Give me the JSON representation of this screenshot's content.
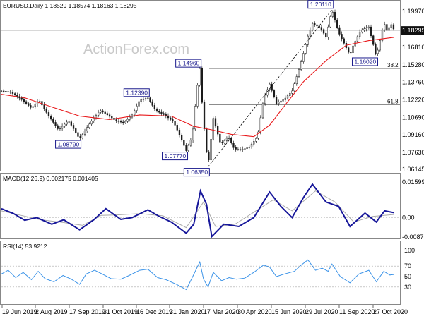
{
  "header": {
    "main": "EURUSD,Daily  1.18529 1.18574 1.18163 1.18295",
    "macd": "MACD(12,26,9) 0.002175 0.001405",
    "rsi": "RSI(14) 53.9212"
  },
  "watermark": "ActionForex.com",
  "colors": {
    "candle": "#1a1a1a",
    "sma": "#e8191b",
    "macd": "#17179a",
    "signal": "#aaaaaa",
    "rsi": "#3b93e8",
    "label_border": "#1a1a8c",
    "level_lines": "#666666",
    "current_price_box": "#111111"
  },
  "chart_data": [
    {
      "type": "candlestick",
      "ylim": [
        1.06145,
        1.1997
      ],
      "yticks": [
        "1.19970",
        "1.18295",
        "1.16810",
        "1.15280",
        "1.13760",
        "1.12220",
        "1.10690",
        "1.09160",
        "1.07630",
        "1.06145"
      ],
      "current_price": "1.18295",
      "xticks": [
        "19 Jun 2019",
        "2 Aug 2019",
        "17 Sep 2019",
        "31 Oct 2019",
        "16 Dec 2019",
        "31 Jan 2020",
        "17 Mar 2020",
        "30 Apr 2020",
        "15 Jun 2020",
        "29 Jul 2020",
        "11 Sep 2020",
        "27 Oct 2020"
      ],
      "price_path": [
        [
          "2019-06-19",
          1.13
        ],
        [
          "2019-07-01",
          1.129
        ],
        [
          "2019-07-15",
          1.123
        ],
        [
          "2019-07-29",
          1.115
        ],
        [
          "2019-08-08",
          1.122
        ],
        [
          "2019-08-20",
          1.109
        ],
        [
          "2019-09-03",
          1.096
        ],
        [
          "2019-09-16",
          1.104
        ],
        [
          "2019-09-23",
          1.097
        ],
        [
          "2019-10-01",
          1.0879
        ],
        [
          "2019-10-15",
          1.102
        ],
        [
          "2019-10-28",
          1.113
        ],
        [
          "2019-11-05",
          1.11
        ],
        [
          "2019-11-18",
          1.104
        ],
        [
          "2019-11-29",
          1.102
        ],
        [
          "2019-12-10",
          1.109
        ],
        [
          "2019-12-20",
          1.122
        ],
        [
          "2019-12-31",
          1.1239
        ],
        [
          "2020-01-10",
          1.113
        ],
        [
          "2020-01-22",
          1.109
        ],
        [
          "2020-02-03",
          1.103
        ],
        [
          "2020-02-12",
          1.09
        ],
        [
          "2020-02-20",
          1.0777
        ],
        [
          "2020-02-28",
          1.09
        ],
        [
          "2020-03-05",
          1.13
        ],
        [
          "2020-03-09",
          1.1496
        ],
        [
          "2020-03-13",
          1.11
        ],
        [
          "2020-03-20",
          1.0635
        ],
        [
          "2020-03-27",
          1.106
        ],
        [
          "2020-04-06",
          1.083
        ],
        [
          "2020-04-16",
          1.09
        ],
        [
          "2020-04-24",
          1.079
        ],
        [
          "2020-05-06",
          1.079
        ],
        [
          "2020-05-14",
          1.081
        ],
        [
          "2020-05-25",
          1.09
        ],
        [
          "2020-06-02",
          1.123
        ],
        [
          "2020-06-10",
          1.136
        ],
        [
          "2020-06-19",
          1.119
        ],
        [
          "2020-06-30",
          1.123
        ],
        [
          "2020-07-10",
          1.13
        ],
        [
          "2020-07-21",
          1.153
        ],
        [
          "2020-07-31",
          1.178
        ],
        [
          "2020-08-06",
          1.189
        ],
        [
          "2020-08-17",
          1.185
        ],
        [
          "2020-08-24",
          1.177
        ],
        [
          "2020-09-01",
          1.2011
        ],
        [
          "2020-09-10",
          1.181
        ],
        [
          "2020-09-25",
          1.1612
        ],
        [
          "2020-09-28",
          1.168
        ],
        [
          "2020-10-09",
          1.183
        ],
        [
          "2020-10-20",
          1.186
        ],
        [
          "2020-10-30",
          1.1602
        ],
        [
          "2020-11-04",
          1.174
        ],
        [
          "2020-11-09",
          1.19
        ],
        [
          "2020-11-13",
          1.183
        ],
        [
          "2020-11-19",
          1.188
        ],
        [
          "2020-11-23",
          1.183
        ]
      ],
      "labels": [
        {
          "text": "1.08790",
          "date": "2019-10-01",
          "price": 1.0879,
          "side": "below"
        },
        {
          "text": "1.12390",
          "date": "2019-12-31",
          "price": 1.1239,
          "side": "above"
        },
        {
          "text": "1.07770",
          "date": "2020-02-20",
          "price": 1.0777,
          "side": "below"
        },
        {
          "text": "1.14960",
          "date": "2020-03-09",
          "price": 1.1496,
          "side": "above"
        },
        {
          "text": "1.06350",
          "date": "2020-03-20",
          "price": 1.0635,
          "side": "below"
        },
        {
          "text": "1.20110",
          "date": "2020-09-01",
          "price": 1.2011,
          "side": "above"
        },
        {
          "text": "1.16020",
          "date": "2020-10-30",
          "price": 1.1602,
          "side": "below"
        }
      ],
      "fib_levels": [
        {
          "text": "38.2",
          "price": 1.1496
        },
        {
          "text": "61.8",
          "price": 1.118
        }
      ],
      "trend_line": {
        "from": [
          "2020-03-20",
          1.0635
        ],
        "to": [
          "2020-09-01",
          1.2011
        ]
      },
      "sma_path": [
        [
          "2019-06-19",
          1.127
        ],
        [
          "2019-07-20",
          1.124
        ],
        [
          "2019-08-25",
          1.116
        ],
        [
          "2019-10-01",
          1.108
        ],
        [
          "2019-11-10",
          1.105
        ],
        [
          "2019-12-20",
          1.109
        ],
        [
          "2020-01-31",
          1.108
        ],
        [
          "2020-03-01",
          1.099
        ],
        [
          "2020-03-25",
          1.096
        ],
        [
          "2020-04-20",
          1.092
        ],
        [
          "2020-05-20",
          1.09
        ],
        [
          "2020-06-10",
          1.1
        ],
        [
          "2020-07-01",
          1.118
        ],
        [
          "2020-07-25",
          1.138
        ],
        [
          "2020-08-25",
          1.157
        ],
        [
          "2020-09-20",
          1.17
        ],
        [
          "2020-10-20",
          1.174
        ],
        [
          "2020-11-23",
          1.177
        ]
      ]
    },
    {
      "type": "line",
      "ylim": [
        -0.00876,
        0.015991
      ],
      "yticks": [
        "0.015991",
        "0.00",
        "-0.00876"
      ],
      "series": [
        {
          "key": "macd",
          "path": [
            [
              "2019-06-19",
              0.004
            ],
            [
              "2019-07-05",
              0.0018
            ],
            [
              "2019-07-20",
              -0.0012
            ],
            [
              "2019-08-05",
              0.0
            ],
            [
              "2019-08-25",
              -0.003
            ],
            [
              "2019-09-10",
              -0.001
            ],
            [
              "2019-10-01",
              -0.0055
            ],
            [
              "2019-10-20",
              -0.001
            ],
            [
              "2019-11-05",
              0.004
            ],
            [
              "2019-11-25",
              -0.0008
            ],
            [
              "2019-12-10",
              0.0
            ],
            [
              "2019-12-31",
              0.0035
            ],
            [
              "2020-01-15",
              0.0005
            ],
            [
              "2020-01-31",
              -0.002
            ],
            [
              "2020-02-20",
              -0.007
            ],
            [
              "2020-03-01",
              -0.003
            ],
            [
              "2020-03-10",
              0.012
            ],
            [
              "2020-03-18",
              0.006
            ],
            [
              "2020-03-25",
              -0.0085
            ],
            [
              "2020-04-10",
              -0.003
            ],
            [
              "2020-04-30",
              -0.004
            ],
            [
              "2020-05-20",
              0.0
            ],
            [
              "2020-06-10",
              0.0115
            ],
            [
              "2020-06-25",
              0.005
            ],
            [
              "2020-07-10",
              0.0
            ],
            [
              "2020-07-25",
              0.009
            ],
            [
              "2020-08-06",
              0.015
            ],
            [
              "2020-08-24",
              0.007
            ],
            [
              "2020-09-10",
              0.005
            ],
            [
              "2020-09-25",
              -0.004
            ],
            [
              "2020-10-15",
              0.002
            ],
            [
              "2020-10-30",
              -0.002
            ],
            [
              "2020-11-10",
              0.003
            ],
            [
              "2020-11-23",
              0.0022
            ]
          ]
        },
        {
          "key": "signal",
          "path": [
            [
              "2019-06-19",
              0.003
            ],
            [
              "2019-07-15",
              0.001
            ],
            [
              "2019-08-10",
              -0.001
            ],
            [
              "2019-09-05",
              -0.002
            ],
            [
              "2019-10-05",
              -0.0035
            ],
            [
              "2019-10-30",
              0.001
            ],
            [
              "2019-11-20",
              0.0012
            ],
            [
              "2019-12-20",
              0.0018
            ],
            [
              "2020-01-20",
              0.0008
            ],
            [
              "2020-02-20",
              -0.0045
            ],
            [
              "2020-03-14",
              0.007
            ],
            [
              "2020-03-30",
              -0.004
            ],
            [
              "2020-04-25",
              -0.003
            ],
            [
              "2020-06-15",
              0.008
            ],
            [
              "2020-07-10",
              0.003
            ],
            [
              "2020-08-10",
              0.012
            ],
            [
              "2020-09-05",
              0.007
            ],
            [
              "2020-09-30",
              -0.002
            ],
            [
              "2020-10-25",
              0.0005
            ],
            [
              "2020-11-23",
              0.0014
            ]
          ]
        }
      ]
    },
    {
      "type": "line",
      "ylim": [
        0,
        100
      ],
      "yticks": [
        "100",
        "70",
        "50",
        "30"
      ],
      "series": [
        {
          "key": "rsi",
          "path": [
            [
              "2019-06-19",
              55
            ],
            [
              "2019-06-28",
              62
            ],
            [
              "2019-07-08",
              48
            ],
            [
              "2019-07-18",
              58
            ],
            [
              "2019-07-29",
              44
            ],
            [
              "2019-08-07",
              60
            ],
            [
              "2019-08-16",
              46
            ],
            [
              "2019-08-28",
              40
            ],
            [
              "2019-09-09",
              52
            ],
            [
              "2019-09-20",
              45
            ],
            [
              "2019-10-01",
              35
            ],
            [
              "2019-10-10",
              55
            ],
            [
              "2019-10-21",
              62
            ],
            [
              "2019-10-31",
              55
            ],
            [
              "2019-11-12",
              46
            ],
            [
              "2019-11-25",
              45
            ],
            [
              "2019-12-06",
              52
            ],
            [
              "2019-12-20",
              62
            ],
            [
              "2019-12-31",
              64
            ],
            [
              "2020-01-13",
              48
            ],
            [
              "2020-01-24",
              44
            ],
            [
              "2020-02-07",
              35
            ],
            [
              "2020-02-20",
              25
            ],
            [
              "2020-02-28",
              48
            ],
            [
              "2020-03-09",
              78
            ],
            [
              "2020-03-14",
              45
            ],
            [
              "2020-03-20",
              30
            ],
            [
              "2020-03-27",
              58
            ],
            [
              "2020-04-07",
              42
            ],
            [
              "2020-04-17",
              48
            ],
            [
              "2020-04-27",
              45
            ],
            [
              "2020-05-08",
              47
            ],
            [
              "2020-05-20",
              58
            ],
            [
              "2020-06-02",
              72
            ],
            [
              "2020-06-10",
              68
            ],
            [
              "2020-06-19",
              50
            ],
            [
              "2020-06-30",
              55
            ],
            [
              "2020-07-13",
              60
            ],
            [
              "2020-07-22",
              72
            ],
            [
              "2020-07-31",
              82
            ],
            [
              "2020-08-10",
              62
            ],
            [
              "2020-08-19",
              66
            ],
            [
              "2020-08-27",
              60
            ],
            [
              "2020-09-01",
              74
            ],
            [
              "2020-09-12",
              50
            ],
            [
              "2020-09-25",
              38
            ],
            [
              "2020-10-07",
              55
            ],
            [
              "2020-10-20",
              62
            ],
            [
              "2020-10-30",
              40
            ],
            [
              "2020-11-09",
              60
            ],
            [
              "2020-11-17",
              53
            ],
            [
              "2020-11-23",
              54
            ]
          ]
        }
      ]
    }
  ]
}
